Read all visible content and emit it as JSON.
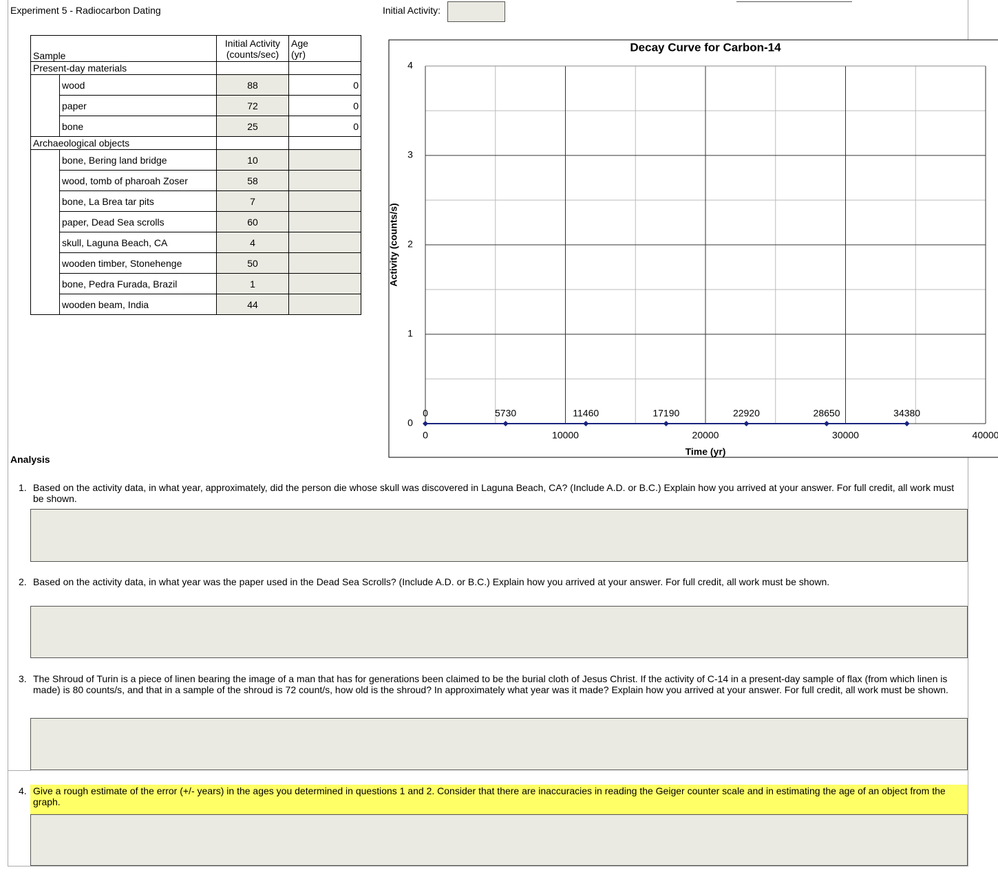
{
  "header": {
    "title": "Experiment 5 - Radiocarbon Dating",
    "initial_activity_label": "Initial Activity:"
  },
  "table": {
    "columns": [
      "Sample",
      "Initial Activity\n(counts/sec)",
      "Age\n(yr)"
    ],
    "groups": [
      {
        "name": "Present-day materials",
        "rows": [
          {
            "sample": "wood",
            "activity": 88,
            "age": 0
          },
          {
            "sample": "paper",
            "activity": 72,
            "age": 0
          },
          {
            "sample": "bone",
            "activity": 25,
            "age": 0
          }
        ]
      },
      {
        "name": "Archaeological objects",
        "rows": [
          {
            "sample": "bone, Bering land bridge",
            "activity": 10
          },
          {
            "sample": "wood, tomb of pharoah Zoser",
            "activity": 58
          },
          {
            "sample": "bone, La Brea tar pits",
            "activity": 7
          },
          {
            "sample": "paper, Dead Sea scrolls",
            "activity": 60
          },
          {
            "sample": "skull, Laguna Beach, CA",
            "activity": 4
          },
          {
            "sample": "wooden timber, Stonehenge",
            "activity": 50
          },
          {
            "sample": "bone, Pedra Furada, Brazil",
            "activity": 1
          },
          {
            "sample": "wooden beam, India",
            "activity": 44
          }
        ]
      }
    ]
  },
  "chart_data": {
    "type": "scatter",
    "title": "Decay Curve for Carbon-14",
    "x_label": "Time (yr)",
    "y_label": "Activity (counts/s)",
    "series": [
      {
        "color": "#1a237e",
        "x": [
          0,
          5730,
          11460,
          17190,
          22920,
          28650,
          34380
        ],
        "values": [
          0,
          0,
          0,
          0,
          0,
          0,
          0
        ]
      }
    ],
    "lines": true,
    "data_labels": true,
    "xlim": [
      0,
      40000
    ],
    "xticks": [
      0,
      10000,
      20000,
      30000,
      40000
    ],
    "ylim": [
      0,
      4
    ],
    "yticks": [
      0,
      1,
      2,
      3,
      4
    ],
    "grid": true,
    "minor_grid": true
  },
  "analysis": {
    "title": "Analysis",
    "questions": [
      {
        "number": "1.",
        "text": "Based on the activity data, in what year, approximately, did the person die whose skull was discovered in Laguna Beach, CA? (Include A.D. or B.C.) Explain how you arrived at your answer. For full credit, all work must be shown."
      },
      {
        "number": "2.",
        "text": "Based on the activity data, in what year was the paper used in the Dead Sea Scrolls? (Include A.D. or B.C.) Explain how you arrived at your answer. For full credit, all work must be shown."
      },
      {
        "number": "3.",
        "text": "The Shroud of Turin is a piece of linen bearing the image of a man that has for generations been claimed to be the burial cloth of Jesus Christ. If the activity of C-14 in a present-day sample of flax (from which linen is made) is 80 counts/s, and that in a sample of the shroud is 72 count/s, how old is the shroud? In approximately what year was it made? Explain how you arrived at your answer. For full credit, all work must be shown."
      },
      {
        "number": "4.",
        "text": "Give a rough estimate of the error (+/- years) in the ages you determined in questions 1 and 2. Consider that there are inaccuracies in reading the Geiger counter scale and in estimating the age of an object from the graph.",
        "highlight": true
      }
    ]
  }
}
